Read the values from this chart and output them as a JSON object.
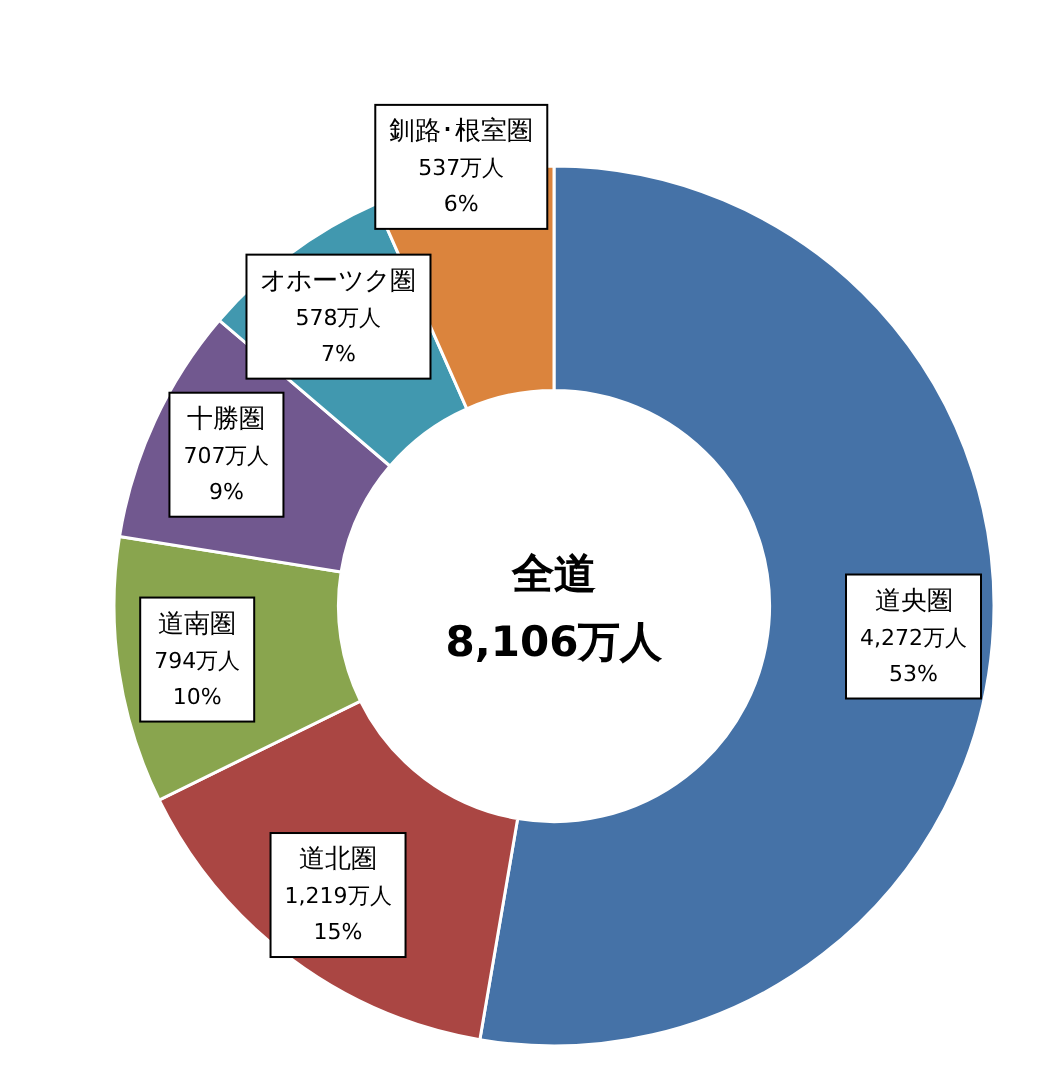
{
  "chart_data": {
    "type": "donut",
    "categories": [
      "道央圏",
      "道北圏",
      "道南圏",
      "十勝圏",
      "オホーツク圏",
      "釧路･根室圏"
    ],
    "values": [
      4272,
      1219,
      794,
      707,
      578,
      537
    ],
    "value_labels": [
      "4,272万人\n53%",
      "1,219万人\n15%",
      "794万人\n10%",
      "707万人\n9%",
      "578万人\n7%",
      "537万人\n6%"
    ],
    "colors": [
      "#4572a7",
      "#aa4643",
      "#89a54e",
      "#71588f",
      "#4198af",
      "#db843d"
    ],
    "annotations": [
      "全道",
      "8,106万人"
    ],
    "legend": false
  }
}
